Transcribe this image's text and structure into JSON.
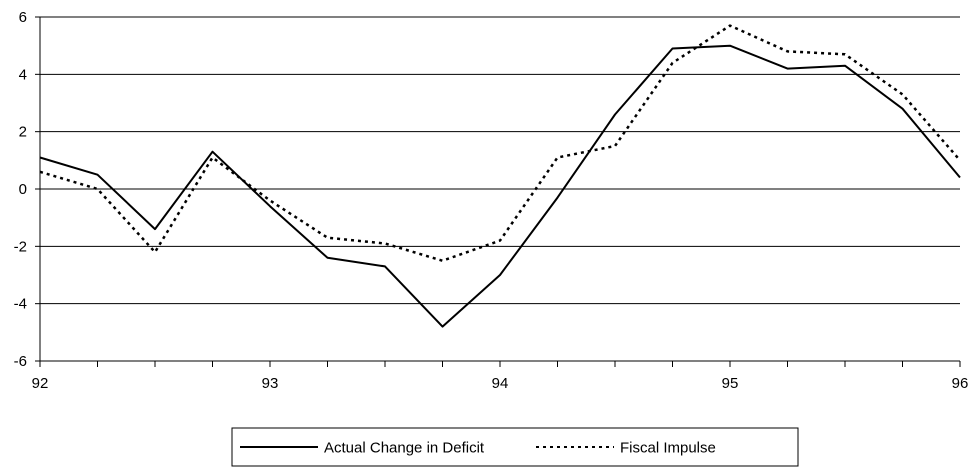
{
  "chart_data": {
    "type": "line",
    "x": [
      92,
      92.25,
      92.5,
      92.75,
      93,
      93.25,
      93.5,
      93.75,
      94,
      94.25,
      94.5,
      94.75,
      95,
      95.25,
      95.5,
      95.75,
      96
    ],
    "xticks": [
      92,
      93,
      94,
      95,
      96
    ],
    "xlim": [
      92,
      96
    ],
    "ylim": [
      -6,
      6
    ],
    "yticks": [
      -6,
      -4,
      -2,
      0,
      2,
      4,
      6
    ],
    "grid": "horizontal",
    "legend": "bottom",
    "series": [
      {
        "name": "Actual Change in Deficit",
        "style": "solid",
        "color": "#000000",
        "values": [
          1.1,
          0.5,
          -1.4,
          1.3,
          -0.6,
          -2.4,
          -2.7,
          -4.8,
          -3.0,
          -0.3,
          2.6,
          4.9,
          5.0,
          4.2,
          4.3,
          2.8,
          0.4
        ]
      },
      {
        "name": "Fiscal Impulse",
        "style": "dotted",
        "color": "#000000",
        "values": [
          0.6,
          0.0,
          -2.2,
          1.1,
          -0.4,
          -1.7,
          -1.9,
          -2.5,
          -1.8,
          1.1,
          1.5,
          4.4,
          5.7,
          4.8,
          4.7,
          3.3,
          1.0
        ]
      }
    ]
  }
}
